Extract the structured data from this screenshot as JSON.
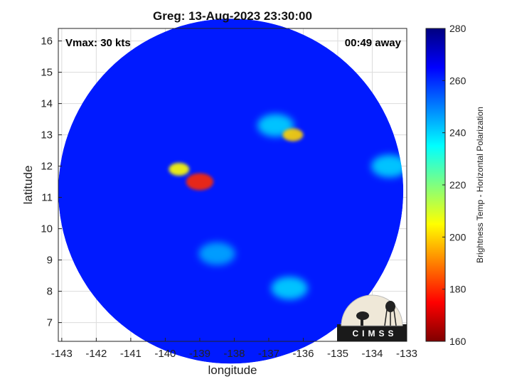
{
  "chart_data": {
    "type": "heatmap",
    "title": "Greg: 13-Aug-2023 23:30:00",
    "xlabel": "longitude",
    "ylabel": "latitude",
    "xlim": [
      -143.1,
      -133
    ],
    "ylim": [
      6.4,
      16.4
    ],
    "xticks": [
      -143,
      -142,
      -141,
      -140,
      -139,
      -138,
      -137,
      -136,
      -135,
      -134,
      -133
    ],
    "yticks": [
      7,
      8,
      9,
      10,
      11,
      12,
      13,
      14,
      15,
      16
    ],
    "grid": true,
    "annotations": {
      "vmax": "Vmax: 30 kts",
      "time_away": "00:49 away"
    },
    "colorbar": {
      "label": "Brightness Temp - Horizontal Polarization",
      "range": [
        160,
        280
      ],
      "ticks": [
        160,
        180,
        200,
        220,
        240,
        260,
        280
      ],
      "colormap": "jet",
      "colors": [
        "#7f0000",
        "#ff0000",
        "#ffff00",
        "#00ffff",
        "#0000ff",
        "#00007f"
      ]
    },
    "swath": {
      "center_lon": -138.1,
      "center_lat": 11.2,
      "radius_deg": 5.0
    },
    "features": [
      {
        "name": "cold core",
        "lon": -139.0,
        "lat": 11.5,
        "value": 180
      },
      {
        "name": "convective band west",
        "lon": -139.6,
        "lat": 11.9,
        "value": 205
      },
      {
        "name": "cold spot northeast",
        "lon": -136.3,
        "lat": 13.0,
        "value": 200
      },
      {
        "name": "band northeast",
        "lon": -136.8,
        "lat": 13.3,
        "value": 240
      },
      {
        "name": "band east",
        "lon": -133.5,
        "lat": 12.0,
        "value": 240
      },
      {
        "name": "band south",
        "lon": -136.4,
        "lat": 8.1,
        "value": 240
      },
      {
        "name": "band southwest",
        "lon": -138.5,
        "lat": 9.2,
        "value": 245
      }
    ],
    "background_value": 262
  },
  "logo": {
    "text": "CIMSS"
  }
}
